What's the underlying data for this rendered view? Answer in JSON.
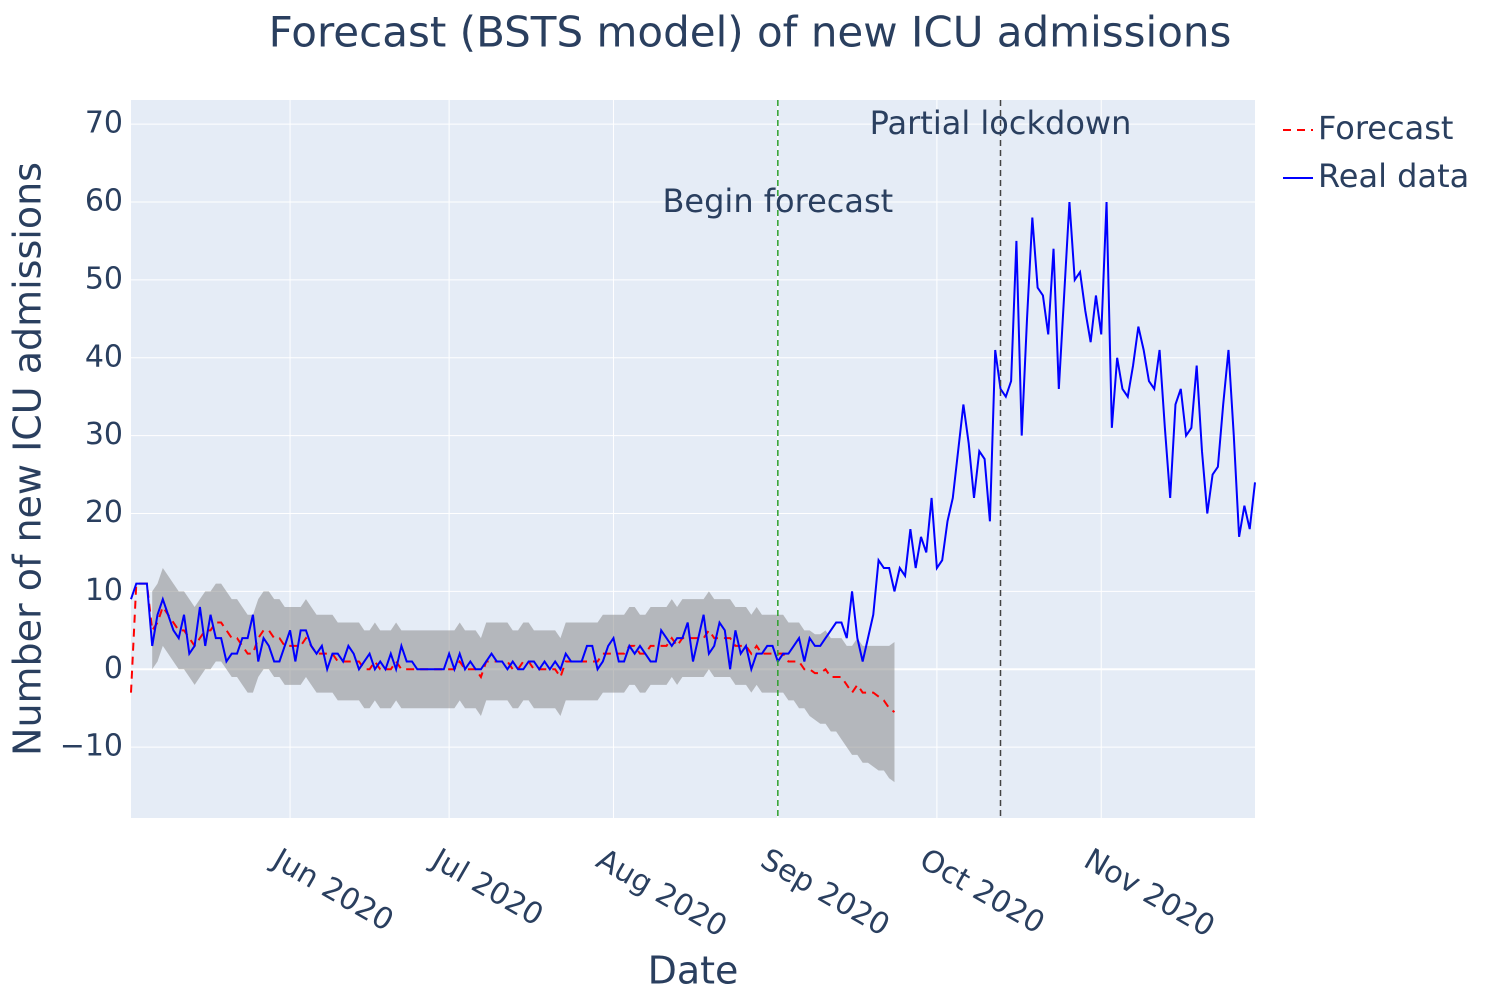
{
  "chart_data": {
    "type": "line",
    "title": "Forecast (BSTS model) of new ICU admissions",
    "x_label": "Date",
    "y_label": "Number of new ICU admissions",
    "grid": true,
    "legend": "outside-top-right",
    "xlim": [
      "2020-05-02",
      "2020-11-30"
    ],
    "xticks": [
      {
        "value": "2020-06-01",
        "label": "Jun 2020"
      },
      {
        "value": "2020-07-01",
        "label": "Jul 2020"
      },
      {
        "value": "2020-08-01",
        "label": "Aug 2020"
      },
      {
        "value": "2020-09-01",
        "label": "Sep 2020"
      },
      {
        "value": "2020-10-01",
        "label": "Oct 2020"
      },
      {
        "value": "2020-11-01",
        "label": "Nov 2020"
      }
    ],
    "ylim": [
      -19.1,
      73.1
    ],
    "yticks": [
      {
        "value": -10,
        "label": "−10"
      },
      0,
      10,
      20,
      30,
      40,
      50,
      60,
      70
    ],
    "vlines": [
      {
        "x": "2020-09-01",
        "label": "Begin forecast",
        "color": "#2ca02c"
      },
      {
        "x": "2020-10-13",
        "label": "Partial lockdown",
        "color": "#444444"
      }
    ],
    "x": [
      "2020-05-02",
      "2020-05-03",
      "2020-05-04",
      "2020-05-05",
      "2020-05-06",
      "2020-05-07",
      "2020-05-08",
      "2020-05-09",
      "2020-05-10",
      "2020-05-11",
      "2020-05-12",
      "2020-05-13",
      "2020-05-14",
      "2020-05-15",
      "2020-05-16",
      "2020-05-17",
      "2020-05-18",
      "2020-05-19",
      "2020-05-20",
      "2020-05-21",
      "2020-05-22",
      "2020-05-23",
      "2020-05-24",
      "2020-05-25",
      "2020-05-26",
      "2020-05-27",
      "2020-05-28",
      "2020-05-29",
      "2020-05-30",
      "2020-05-31",
      "2020-06-01",
      "2020-06-02",
      "2020-06-03",
      "2020-06-04",
      "2020-06-05",
      "2020-06-06",
      "2020-06-07",
      "2020-06-08",
      "2020-06-09",
      "2020-06-10",
      "2020-06-11",
      "2020-06-12",
      "2020-06-13",
      "2020-06-14",
      "2020-06-15",
      "2020-06-16",
      "2020-06-17",
      "2020-06-18",
      "2020-06-19",
      "2020-06-20",
      "2020-06-21",
      "2020-06-22",
      "2020-06-23",
      "2020-06-24",
      "2020-06-25",
      "2020-06-26",
      "2020-06-27",
      "2020-06-28",
      "2020-06-29",
      "2020-06-30",
      "2020-07-01",
      "2020-07-02",
      "2020-07-03",
      "2020-07-04",
      "2020-07-05",
      "2020-07-06",
      "2020-07-07",
      "2020-07-08",
      "2020-07-09",
      "2020-07-10",
      "2020-07-11",
      "2020-07-12",
      "2020-07-13",
      "2020-07-14",
      "2020-07-15",
      "2020-07-16",
      "2020-07-17",
      "2020-07-18",
      "2020-07-19",
      "2020-07-20",
      "2020-07-21",
      "2020-07-22",
      "2020-07-23",
      "2020-07-24",
      "2020-07-25",
      "2020-07-26",
      "2020-07-27",
      "2020-07-28",
      "2020-07-29",
      "2020-07-30",
      "2020-07-31",
      "2020-08-01",
      "2020-08-02",
      "2020-08-03",
      "2020-08-04",
      "2020-08-05",
      "2020-08-06",
      "2020-08-07",
      "2020-08-08",
      "2020-08-09",
      "2020-08-10",
      "2020-08-11",
      "2020-08-12",
      "2020-08-13",
      "2020-08-14",
      "2020-08-15",
      "2020-08-16",
      "2020-08-17",
      "2020-08-18",
      "2020-08-19",
      "2020-08-20",
      "2020-08-21",
      "2020-08-22",
      "2020-08-23",
      "2020-08-24",
      "2020-08-25",
      "2020-08-26",
      "2020-08-27",
      "2020-08-28",
      "2020-08-29",
      "2020-08-30",
      "2020-08-31",
      "2020-09-01",
      "2020-09-02",
      "2020-09-03",
      "2020-09-04",
      "2020-09-05",
      "2020-09-06",
      "2020-09-07",
      "2020-09-08",
      "2020-09-09",
      "2020-09-10",
      "2020-09-11",
      "2020-09-12",
      "2020-09-13",
      "2020-09-14",
      "2020-09-15",
      "2020-09-16",
      "2020-09-17",
      "2020-09-18",
      "2020-09-19",
      "2020-09-20",
      "2020-09-21",
      "2020-09-22",
      "2020-09-23",
      "2020-09-24",
      "2020-09-25",
      "2020-09-26",
      "2020-09-27",
      "2020-09-28",
      "2020-09-29",
      "2020-09-30",
      "2020-10-01",
      "2020-10-02",
      "2020-10-03",
      "2020-10-04",
      "2020-10-05",
      "2020-10-06",
      "2020-10-07",
      "2020-10-08",
      "2020-10-09",
      "2020-10-10",
      "2020-10-11",
      "2020-10-12",
      "2020-10-13",
      "2020-10-14",
      "2020-10-15",
      "2020-10-16",
      "2020-10-17",
      "2020-10-18",
      "2020-10-19",
      "2020-10-20",
      "2020-10-21",
      "2020-10-22",
      "2020-10-23",
      "2020-10-24",
      "2020-10-25",
      "2020-10-26",
      "2020-10-27",
      "2020-10-28",
      "2020-10-29",
      "2020-10-30",
      "2020-10-31",
      "2020-11-01",
      "2020-11-02",
      "2020-11-03",
      "2020-11-04",
      "2020-11-05",
      "2020-11-06",
      "2020-11-07",
      "2020-11-08",
      "2020-11-09",
      "2020-11-10",
      "2020-11-11",
      "2020-11-12",
      "2020-11-13",
      "2020-11-14",
      "2020-11-15",
      "2020-11-16",
      "2020-11-17",
      "2020-11-18",
      "2020-11-19",
      "2020-11-20",
      "2020-11-21",
      "2020-11-22",
      "2020-11-23",
      "2020-11-24",
      "2020-11-25",
      "2020-11-26",
      "2020-11-27",
      "2020-11-28",
      "2020-11-29",
      "2020-11-30"
    ],
    "band": {
      "color": "rgba(140,140,140,0.55)",
      "upper": [
        null,
        null,
        null,
        null,
        10,
        11,
        13,
        12,
        11,
        10,
        10,
        9,
        8,
        9,
        10,
        10,
        11,
        11,
        10,
        9,
        9,
        8,
        7,
        7,
        9,
        10,
        10,
        9,
        9,
        8,
        8,
        8,
        8,
        9,
        8,
        7,
        7,
        7,
        7,
        6,
        6,
        6,
        6,
        6,
        5,
        5,
        6,
        5,
        5,
        5,
        6,
        5,
        5,
        5,
        5,
        5,
        5,
        5,
        5,
        5,
        5,
        5,
        6,
        5,
        5,
        5,
        4,
        6,
        6,
        6,
        6,
        6,
        5,
        5,
        6,
        6,
        5,
        5,
        5,
        5,
        5,
        4,
        6,
        6,
        6,
        6,
        6,
        6,
        6,
        7,
        7,
        7,
        7,
        7,
        8,
        8,
        7,
        7,
        8,
        8,
        8,
        8,
        9,
        8,
        9,
        9,
        9,
        9,
        9,
        10,
        9,
        9,
        9,
        9,
        8,
        8,
        8,
        7,
        8,
        7,
        7,
        7,
        7,
        7,
        6,
        6,
        6,
        5,
        5,
        4.5,
        4.5,
        5,
        4,
        4,
        4,
        3,
        3,
        4,
        3,
        3,
        3,
        3,
        3,
        3,
        3.5,
        null,
        null,
        null,
        null,
        null,
        null,
        null,
        null,
        null,
        null,
        null,
        null,
        null,
        null,
        null,
        null,
        null,
        null,
        null,
        null,
        null,
        null,
        null,
        null,
        null,
        null,
        null,
        null,
        null,
        null,
        null,
        null,
        null,
        null,
        null,
        null,
        null,
        null,
        null,
        null,
        null,
        null,
        null,
        null,
        null,
        null,
        null,
        null,
        null,
        null,
        null,
        null,
        null,
        null,
        null,
        null,
        null,
        null,
        null,
        null,
        null,
        null,
        null,
        null,
        null,
        null,
        null,
        null
      ],
      "lower": [
        null,
        null,
        null,
        null,
        0,
        1,
        3,
        2,
        1,
        0,
        0,
        -1,
        -2,
        -1,
        0,
        0,
        1,
        1,
        0,
        -1,
        -1,
        -2,
        -3,
        -3,
        -1,
        0,
        0,
        -1,
        -1,
        -2,
        -2,
        -2,
        -2,
        -1,
        -2,
        -3,
        -3,
        -3,
        -3,
        -4,
        -4,
        -4,
        -4,
        -4,
        -5,
        -5,
        -4,
        -5,
        -5,
        -5,
        -4,
        -5,
        -5,
        -5,
        -5,
        -5,
        -5,
        -5,
        -5,
        -5,
        -5,
        -5,
        -4,
        -5,
        -5,
        -5,
        -6,
        -4,
        -4,
        -4,
        -4,
        -4,
        -5,
        -5,
        -4,
        -4,
        -5,
        -5,
        -5,
        -5,
        -5,
        -6,
        -4,
        -4,
        -4,
        -4,
        -4,
        -4,
        -4,
        -3,
        -3,
        -3,
        -3,
        -3,
        -2,
        -2,
        -3,
        -3,
        -2,
        -2,
        -2,
        -2,
        -1,
        -2,
        -1,
        -1,
        -1,
        -1,
        -1,
        0,
        -1,
        -1,
        -1,
        -1,
        -2,
        -2,
        -2,
        -3,
        -2,
        -3,
        -3,
        -3,
        -3,
        -3,
        -4,
        -4,
        -5,
        -5,
        -6,
        -6.5,
        -7,
        -7,
        -8,
        -8,
        -9,
        -10,
        -11,
        -11,
        -12,
        -12,
        -12.5,
        -13,
        -13,
        -14,
        -14.5,
        null,
        null,
        null,
        null,
        null,
        null,
        null,
        null,
        null,
        null,
        null,
        null,
        null,
        null,
        null,
        null,
        null,
        null,
        null,
        null,
        null,
        null,
        null,
        null,
        null,
        null,
        null,
        null,
        null,
        null,
        null,
        null,
        null,
        null,
        null,
        null,
        null,
        null,
        null,
        null,
        null,
        null,
        null,
        null,
        null,
        null,
        null,
        null,
        null,
        null,
        null,
        null,
        null,
        null,
        null,
        null,
        null,
        null,
        null,
        null,
        null,
        null,
        null,
        null,
        null,
        null,
        null,
        null
      ]
    },
    "series": [
      {
        "name": "Forecast",
        "color": "red",
        "dash": "dash",
        "values": [
          -3,
          11,
          11,
          11,
          5,
          6,
          8,
          7,
          6,
          5,
          5,
          4,
          3,
          4,
          5,
          5,
          6,
          6,
          5,
          4,
          4,
          3,
          2,
          2,
          4,
          5,
          5,
          4,
          4,
          3,
          3,
          3,
          3,
          4,
          3,
          2,
          2,
          2,
          2,
          1,
          1,
          1,
          1,
          1,
          0,
          0,
          1,
          0,
          0,
          0,
          1,
          0,
          0,
          0,
          0,
          0,
          0,
          0,
          0,
          0,
          0,
          0,
          1,
          0,
          0,
          0,
          -1,
          1,
          1,
          1,
          1,
          1,
          0,
          0,
          1,
          1,
          0,
          0,
          0,
          0,
          0,
          -1,
          1,
          1,
          1,
          1,
          1,
          1,
          1,
          2,
          2,
          2,
          2,
          2,
          3,
          3,
          2,
          2,
          3,
          3,
          3,
          3,
          4,
          3,
          4,
          4,
          4,
          4,
          4,
          5,
          4,
          4,
          4,
          4,
          3,
          3,
          3,
          2,
          3,
          2,
          2,
          2,
          2,
          2,
          1,
          1,
          1,
          0,
          0,
          -0.5,
          -0.5,
          0,
          -1,
          -1,
          -1,
          -2,
          -3,
          -2,
          -3,
          -3,
          -3,
          -3.5,
          -4,
          -5,
          -5.5,
          null,
          null,
          null,
          null,
          null,
          null,
          null,
          null,
          null,
          null,
          null,
          null,
          null,
          null,
          null,
          null,
          null,
          null,
          null,
          null,
          null,
          null,
          null,
          null,
          null,
          null,
          null,
          null,
          null,
          null,
          null,
          null,
          null,
          null,
          null,
          null,
          null,
          null,
          null,
          null,
          null,
          null,
          null,
          null,
          null,
          null,
          null,
          null,
          null,
          null,
          null,
          null,
          null,
          null,
          null,
          null,
          null,
          null,
          null,
          null,
          null,
          null,
          null,
          null,
          null,
          null,
          null,
          null
        ]
      },
      {
        "name": "Real data",
        "color": "blue",
        "values": [
          9,
          11,
          11,
          11,
          3,
          7,
          9,
          7,
          5,
          4,
          7,
          2,
          3,
          8,
          3,
          7,
          4,
          4,
          1,
          2,
          2,
          4,
          4,
          7,
          1,
          4,
          3,
          1,
          1,
          3,
          5,
          1,
          5,
          5,
          3,
          2,
          3,
          0,
          2,
          2,
          1,
          3,
          2,
          0,
          1,
          2,
          0,
          1,
          0,
          2,
          0,
          3,
          1,
          1,
          0,
          0,
          0,
          0,
          0,
          0,
          2,
          0,
          2,
          0,
          1,
          0,
          0,
          1,
          2,
          1,
          1,
          0,
          1,
          0,
          0,
          1,
          1,
          0,
          1,
          0,
          1,
          0,
          2,
          1,
          1,
          1,
          3,
          3,
          0,
          1,
          3,
          4,
          1,
          1,
          3,
          2,
          3,
          2,
          1,
          1,
          5,
          4,
          3,
          4,
          4,
          6,
          1,
          4,
          7,
          2,
          3,
          6,
          5,
          0,
          5,
          2,
          3,
          0,
          2,
          2,
          3,
          3,
          1,
          2,
          2,
          3,
          4,
          1,
          4,
          3,
          3,
          4,
          5,
          6,
          6,
          4,
          10,
          4,
          1,
          4,
          7,
          14,
          13,
          13,
          10,
          13,
          12,
          18,
          13,
          17,
          15,
          22,
          13,
          14,
          19,
          22,
          28,
          34,
          29,
          22,
          28,
          27,
          19,
          41,
          36,
          35,
          37,
          55,
          30,
          45,
          58,
          49,
          48,
          43,
          54,
          36,
          48,
          60,
          50,
          51,
          46,
          42,
          48,
          43,
          60,
          31,
          40,
          36,
          35,
          39,
          44,
          41,
          37,
          36,
          41,
          31,
          22,
          34,
          36,
          30,
          31,
          39,
          28,
          20,
          25,
          26,
          34,
          41,
          30,
          17,
          21,
          18,
          24
        ]
      }
    ]
  }
}
